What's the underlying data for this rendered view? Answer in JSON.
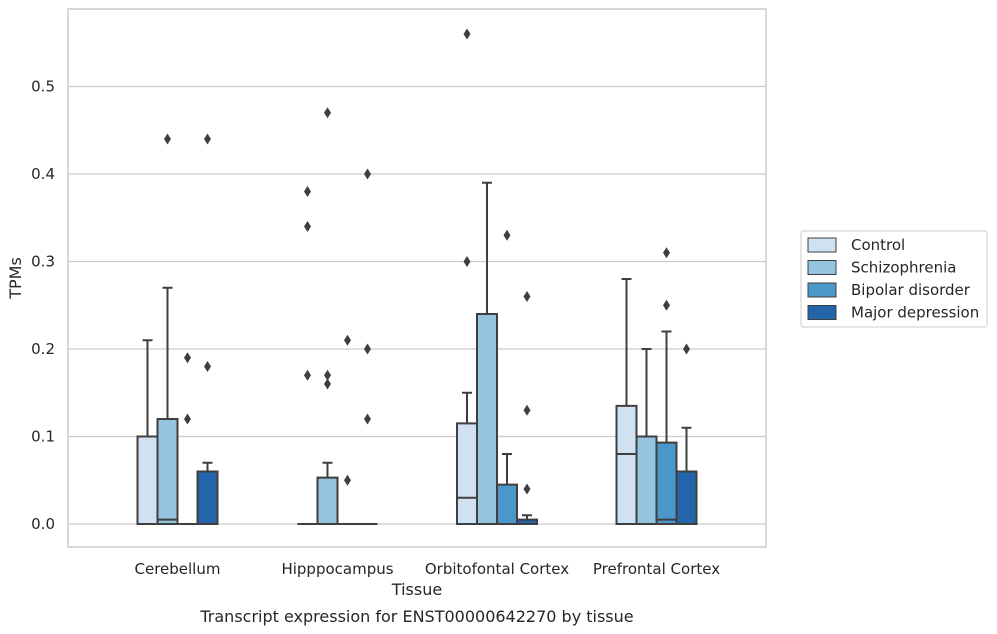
{
  "chart_data": {
    "type": "box",
    "xlabel": "Tissue",
    "ylabel": "TPMs",
    "caption": "Transcript expression for ENST00000642270 by tissue",
    "ylim": [
      -0.027,
      0.588
    ],
    "yticks": [
      0.0,
      0.1,
      0.2,
      0.3,
      0.4,
      0.5
    ],
    "ytick_labels": [
      "0.0",
      "0.1",
      "0.2",
      "0.3",
      "0.4",
      "0.5"
    ],
    "grid": "horizontal",
    "legend_position": "right",
    "categories": [
      "Cerebellum",
      "Hipppocampus",
      "Orbitofontal Cortex",
      "Prefrontal Cortex"
    ],
    "series": [
      {
        "name": "Control",
        "color": "#d0e1f2",
        "boxes": [
          {
            "q1": 0.0,
            "median": 0.0,
            "q3": 0.1,
            "whisker_low": 0.0,
            "whisker_high": 0.21,
            "outliers": []
          },
          {
            "q1": 0.0,
            "median": 0.0,
            "q3": 0.0,
            "whisker_low": 0.0,
            "whisker_high": 0.0,
            "outliers": [
              0.17,
              0.34,
              0.38
            ]
          },
          {
            "q1": 0.0,
            "median": 0.03,
            "q3": 0.115,
            "whisker_low": 0.0,
            "whisker_high": 0.15,
            "outliers": [
              0.3,
              0.56
            ]
          },
          {
            "q1": 0.0,
            "median": 0.08,
            "q3": 0.135,
            "whisker_low": 0.0,
            "whisker_high": 0.28,
            "outliers": []
          }
        ]
      },
      {
        "name": "Schizophrenia",
        "color": "#94c4df",
        "boxes": [
          {
            "q1": 0.0,
            "median": 0.005,
            "q3": 0.12,
            "whisker_low": 0.0,
            "whisker_high": 0.27,
            "outliers": [
              0.44
            ]
          },
          {
            "q1": 0.0,
            "median": 0.0,
            "q3": 0.053,
            "whisker_low": 0.0,
            "whisker_high": 0.07,
            "outliers": [
              0.16,
              0.17,
              0.47
            ]
          },
          {
            "q1": 0.0,
            "median": 0.0,
            "q3": 0.24,
            "whisker_low": 0.0,
            "whisker_high": 0.39,
            "outliers": []
          },
          {
            "q1": 0.0,
            "median": 0.0,
            "q3": 0.1,
            "whisker_low": 0.0,
            "whisker_high": 0.2,
            "outliers": []
          }
        ]
      },
      {
        "name": "Bipolar disorder",
        "color": "#4a98c9",
        "boxes": [
          {
            "q1": 0.0,
            "median": 0.0,
            "q3": 0.0,
            "whisker_low": 0.0,
            "whisker_high": 0.0,
            "outliers": [
              0.12,
              0.19
            ]
          },
          {
            "q1": 0.0,
            "median": 0.0,
            "q3": 0.0,
            "whisker_low": 0.0,
            "whisker_high": 0.0,
            "outliers": [
              0.05,
              0.21
            ]
          },
          {
            "q1": 0.0,
            "median": 0.0,
            "q3": 0.045,
            "whisker_low": 0.0,
            "whisker_high": 0.08,
            "outliers": [
              0.33
            ]
          },
          {
            "q1": 0.0,
            "median": 0.005,
            "q3": 0.093,
            "whisker_low": 0.0,
            "whisker_high": 0.22,
            "outliers": [
              0.25,
              0.31
            ]
          }
        ]
      },
      {
        "name": "Major depression",
        "color": "#2464aa",
        "boxes": [
          {
            "q1": 0.0,
            "median": 0.0,
            "q3": 0.06,
            "whisker_low": 0.0,
            "whisker_high": 0.07,
            "outliers": [
              0.18,
              0.44
            ]
          },
          {
            "q1": 0.0,
            "median": 0.0,
            "q3": 0.0,
            "whisker_low": 0.0,
            "whisker_high": 0.0,
            "outliers": [
              0.12,
              0.2,
              0.4
            ]
          },
          {
            "q1": 0.0,
            "median": 0.0,
            "q3": 0.005,
            "whisker_low": 0.0,
            "whisker_high": 0.01,
            "outliers": [
              0.04,
              0.13,
              0.26
            ]
          },
          {
            "q1": 0.0,
            "median": 0.0,
            "q3": 0.06,
            "whisker_low": 0.0,
            "whisker_high": 0.11,
            "outliers": [
              0.2
            ]
          }
        ]
      }
    ]
  },
  "colors": {
    "line": "#3f3f3f",
    "grid": "#cccccc",
    "frame": "#cccccc"
  }
}
